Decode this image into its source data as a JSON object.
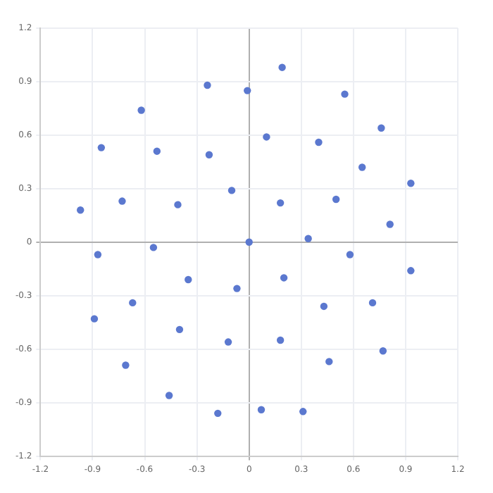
{
  "chart_data": {
    "type": "scatter",
    "marker": "circle",
    "grid": true,
    "xlim": [
      -1.2,
      1.2
    ],
    "ylim": [
      -1.2,
      1.2
    ],
    "xticks": [
      -1.2,
      -0.9,
      -0.6,
      -0.3,
      0,
      0.3,
      0.6,
      0.9,
      1.2
    ],
    "yticks": [
      -1.2,
      -0.9,
      -0.6,
      -0.3,
      0,
      0.3,
      0.6,
      0.9,
      1.2
    ],
    "series": [
      {
        "color": "#5b78cf",
        "x": [
          -0.97,
          -0.85,
          -0.73,
          -0.62,
          -0.53,
          -0.41,
          -0.24,
          -0.23,
          -0.1,
          -0.01,
          0,
          -0.55,
          0.19,
          0.55,
          0.1,
          0.4,
          0.76,
          0.65,
          0.93,
          0.18,
          0.5,
          0.81,
          0.34,
          -0.87,
          -0.35,
          -0.07,
          -0.67,
          -0.89,
          -0.4,
          -0.12,
          -0.71,
          -0.46,
          -0.18,
          0.58,
          0.2,
          0.93,
          0.71,
          0.43,
          0.18,
          0.77,
          0.46,
          0.07,
          0.31
        ],
        "values": [
          0.18,
          0.53,
          0.23,
          0.74,
          0.51,
          0.21,
          0.88,
          0.49,
          0.29,
          0.85,
          0,
          -0.03,
          0.98,
          0.83,
          0.59,
          0.56,
          0.64,
          0.42,
          0.33,
          0.22,
          0.24,
          0.1,
          0.02,
          -0.07,
          -0.21,
          -0.26,
          -0.34,
          -0.43,
          -0.49,
          -0.56,
          -0.69,
          -0.86,
          -0.96,
          -0.07,
          -0.2,
          -0.16,
          -0.34,
          -0.36,
          -0.55,
          -0.61,
          -0.67,
          -0.94,
          -0.95
        ]
      }
    ]
  }
}
